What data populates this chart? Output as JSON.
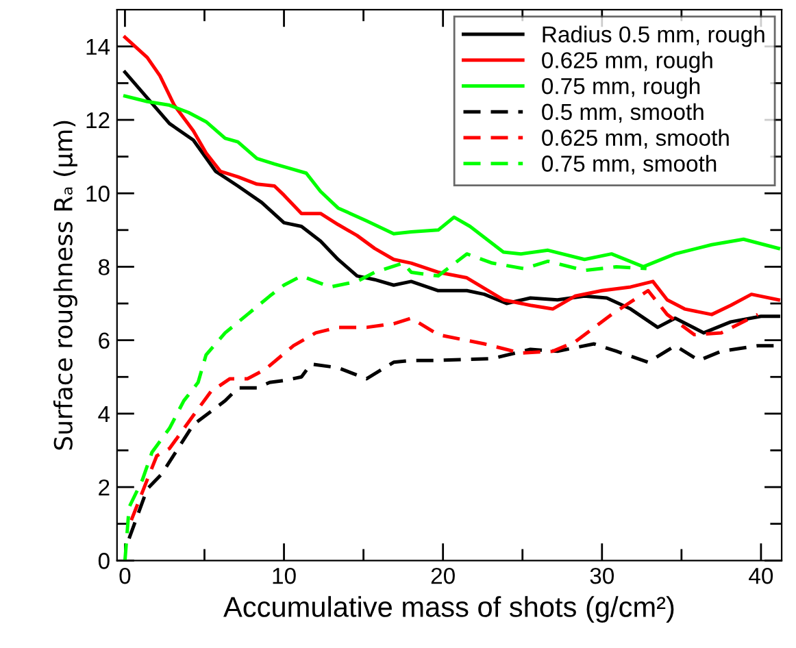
{
  "chart_data": {
    "type": "line",
    "xlabel": "Accumulative mass of shots (g/cm²)",
    "ylabel": "Surface roughness Rₐ (μm)",
    "xlim": [
      -0.5,
      41.3
    ],
    "ylim": [
      0,
      15
    ],
    "xticks": [
      0,
      {
        "value": 5,
        "label": null
      },
      10,
      {
        "value": 15,
        "label": null
      },
      20,
      {
        "value": 25,
        "label": null
      },
      30,
      {
        "value": 35,
        "label": null
      },
      40
    ],
    "yticks": [
      0,
      {
        "value": 1,
        "label": null
      },
      2,
      {
        "value": 3,
        "label": null
      },
      4,
      {
        "value": 5,
        "label": null
      },
      6,
      {
        "value": 7,
        "label": null
      },
      8,
      {
        "value": 9,
        "label": null
      },
      10,
      {
        "value": 11,
        "label": null
      },
      12,
      {
        "value": 13,
        "label": null
      },
      14
    ],
    "grid": false,
    "legend": "top right",
    "marker": "none",
    "series": [
      {
        "name": "Radius 0.5 mm, rough",
        "color": "#000000",
        "line_style": "solid",
        "x": [
          0,
          1.4,
          2.8,
          4.3,
          5.7,
          7.1,
          8.6,
          10,
          11.1,
          12.3,
          13.4,
          14.6,
          15.7,
          16.9,
          18.0,
          19.7,
          21.5,
          22.6,
          24.0,
          25.5,
          27.2,
          28.9,
          30.3,
          31.8,
          33.5,
          34.6,
          36.4,
          38.1,
          40.0,
          41.1
        ],
        "values": [
          13.3,
          12.6,
          11.9,
          11.45,
          10.6,
          10.2,
          9.75,
          9.2,
          9.1,
          8.7,
          8.2,
          7.75,
          7.65,
          7.5,
          7.6,
          7.35,
          7.35,
          7.25,
          7.0,
          7.15,
          7.1,
          7.2,
          7.15,
          6.85,
          6.35,
          6.6,
          6.2,
          6.5,
          6.65,
          6.65
        ]
      },
      {
        "name": "0.625 mm, rough",
        "color": "#ff0000",
        "line_style": "solid",
        "x": [
          0,
          1.4,
          2.2,
          3.1,
          4.3,
          5.1,
          6.0,
          7.1,
          8.3,
          9.4,
          10,
          11.1,
          12.3,
          13.4,
          14.6,
          15.7,
          16.9,
          18.0,
          19.7,
          21.5,
          23.8,
          25.5,
          26.9,
          28.3,
          30.0,
          31.8,
          33.2,
          34.1,
          35.2,
          36.9,
          38.1,
          39.4,
          41.1
        ],
        "values": [
          14.25,
          13.7,
          13.2,
          12.4,
          11.7,
          11.1,
          10.6,
          10.45,
          10.25,
          10.2,
          9.95,
          9.45,
          9.45,
          9.15,
          8.85,
          8.5,
          8.2,
          8.1,
          7.85,
          7.7,
          7.1,
          6.95,
          6.85,
          7.2,
          7.35,
          7.45,
          7.6,
          7.1,
          6.85,
          6.7,
          6.95,
          7.25,
          7.1
        ]
      },
      {
        "name": "0.75 mm, rough",
        "color": "#00ff00",
        "line_style": "solid",
        "x": [
          0,
          1.4,
          2.8,
          4.0,
          5.1,
          6.3,
          7.1,
          8.3,
          9.4,
          10.6,
          11.4,
          12.3,
          13.4,
          15.2,
          16.9,
          18.0,
          19.7,
          20.7,
          21.7,
          23.8,
          24.9,
          26.6,
          28.9,
          30.6,
          32.6,
          34.6,
          36.9,
          38.9,
          41.1
        ],
        "values": [
          12.65,
          12.5,
          12.4,
          12.2,
          11.95,
          11.5,
          11.4,
          10.95,
          10.8,
          10.65,
          10.55,
          10.05,
          9.6,
          9.25,
          8.9,
          8.95,
          9.0,
          9.35,
          9.1,
          8.4,
          8.35,
          8.45,
          8.2,
          8.35,
          8.0,
          8.35,
          8.6,
          8.75,
          8.5
        ]
      },
      {
        "name": "0.5 mm, smooth",
        "color": "#000000",
        "line_style": "dashed",
        "x": [
          0.26,
          1.4,
          2.3,
          4.3,
          6.3,
          7.1,
          8.3,
          9.1,
          10,
          11.1,
          11.7,
          13.4,
          15.2,
          16.9,
          18.0,
          19.7,
          23.1,
          25.5,
          27.2,
          29.5,
          30.9,
          32.9,
          34.6,
          36.1,
          37.5,
          39.8,
          41.1
        ],
        "values": [
          0.6,
          1.95,
          2.35,
          3.7,
          4.35,
          4.7,
          4.7,
          4.85,
          4.9,
          5.0,
          5.35,
          5.25,
          4.95,
          5.4,
          5.45,
          5.45,
          5.5,
          5.75,
          5.7,
          5.9,
          5.7,
          5.4,
          5.85,
          5.45,
          5.7,
          5.85,
          5.85
        ]
      },
      {
        "name": "0.625 mm, smooth",
        "color": "#ff0000",
        "line_style": "dashed",
        "x": [
          0.4,
          1.4,
          2.0,
          2.8,
          4.3,
          5.4,
          6.6,
          7.7,
          8.8,
          10.6,
          12.0,
          13.4,
          15.2,
          16.9,
          18.0,
          19.7,
          22.6,
          24.9,
          26.9,
          28.3,
          30.6,
          32.9,
          34.1,
          35.8,
          37.5,
          39.8
        ],
        "values": [
          1.1,
          2.2,
          2.85,
          3.05,
          3.95,
          4.6,
          4.95,
          4.95,
          5.2,
          5.85,
          6.2,
          6.35,
          6.35,
          6.45,
          6.6,
          6.15,
          5.9,
          5.65,
          5.7,
          5.95,
          6.7,
          7.35,
          6.7,
          6.15,
          6.2,
          6.7
        ]
      },
      {
        "name": "0.75 mm, smooth",
        "color": "#00ff00",
        "line_style": "dashed",
        "x": [
          0,
          0.26,
          1.1,
          1.7,
          2.8,
          3.7,
          4.6,
          5.1,
          6.3,
          7.7,
          9.1,
          10,
          11.1,
          12.9,
          14.6,
          15.7,
          17.5,
          18.0,
          19.7,
          21.5,
          23.1,
          25.1,
          26.6,
          28.9,
          30.9,
          32.8
        ],
        "values": [
          0,
          1.45,
          2.2,
          2.95,
          3.6,
          4.35,
          4.85,
          5.6,
          6.2,
          6.7,
          7.2,
          7.5,
          7.75,
          7.45,
          7.6,
          7.85,
          8.1,
          7.85,
          7.75,
          8.35,
          8.1,
          7.95,
          8.15,
          7.9,
          8.0,
          7.95
        ]
      }
    ]
  }
}
